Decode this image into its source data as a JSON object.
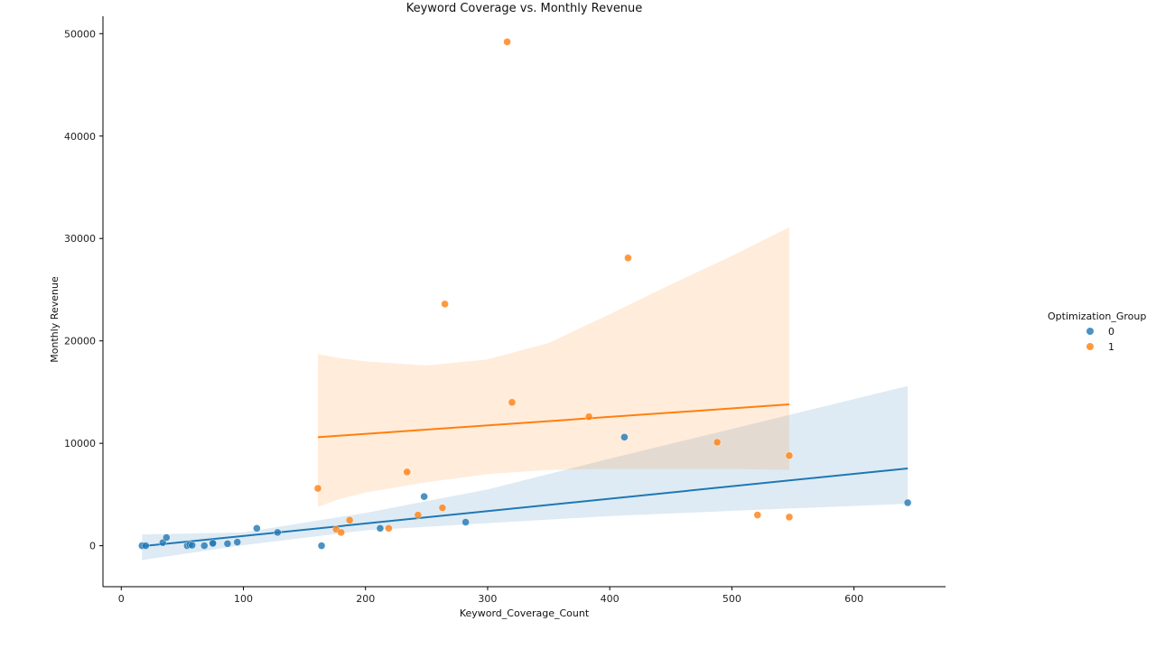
{
  "chart_data": {
    "type": "scatter",
    "title": "Keyword Coverage vs. Monthly Revenue",
    "xlabel": "Keyword_Coverage_Count",
    "ylabel": "Monthly Revenue",
    "xlim": [
      -15,
      675
    ],
    "ylim": [
      -4000,
      51700
    ],
    "x_ticks": [
      0,
      100,
      200,
      300,
      400,
      500,
      600
    ],
    "y_ticks": [
      0,
      10000,
      20000,
      30000,
      40000,
      50000
    ],
    "grid": false,
    "legend": {
      "title": "Optimization_Group",
      "placement": "right",
      "entries": [
        "0",
        "1"
      ]
    },
    "series": [
      {
        "name": "0",
        "color": "#1f77b4",
        "points": [
          [
            17,
            0
          ],
          [
            20,
            0
          ],
          [
            34,
            300
          ],
          [
            37,
            800
          ],
          [
            54,
            0
          ],
          [
            56,
            100
          ],
          [
            58,
            50
          ],
          [
            68,
            0
          ],
          [
            75,
            200
          ],
          [
            75,
            250
          ],
          [
            87,
            200
          ],
          [
            95,
            350
          ],
          [
            111,
            1700
          ],
          [
            128,
            1300
          ],
          [
            164,
            0
          ],
          [
            212,
            1700
          ],
          [
            248,
            4800
          ],
          [
            282,
            2300
          ],
          [
            412,
            10600
          ],
          [
            644,
            4200
          ]
        ],
        "fit_line": {
          "x": [
            17,
            644
          ],
          "y": [
            -50,
            7550
          ]
        },
        "ci_band": {
          "x": [
            17,
            100,
            200,
            300,
            400,
            500,
            644
          ],
          "lower": [
            -1400,
            50,
            1500,
            2200,
            2900,
            3400,
            4100
          ],
          "upper": [
            1100,
            1300,
            3200,
            5500,
            8500,
            11400,
            15600
          ]
        }
      },
      {
        "name": "1",
        "color": "#ff7f0e",
        "points": [
          [
            161,
            5600
          ],
          [
            176,
            1600
          ],
          [
            180,
            1300
          ],
          [
            187,
            2500
          ],
          [
            219,
            1700
          ],
          [
            234,
            7200
          ],
          [
            243,
            3000
          ],
          [
            263,
            3700
          ],
          [
            265,
            23600
          ],
          [
            316,
            49200
          ],
          [
            320,
            14000
          ],
          [
            383,
            12600
          ],
          [
            415,
            28100
          ],
          [
            488,
            10100
          ],
          [
            521,
            3000
          ],
          [
            547,
            2800
          ],
          [
            547,
            8800
          ]
        ],
        "fit_line": {
          "x": [
            161,
            547
          ],
          "y": [
            10600,
            13800
          ]
        },
        "ci_band": {
          "x": [
            161,
            180,
            200,
            250,
            300,
            350,
            400,
            450,
            500,
            547
          ],
          "lower": [
            3800,
            4600,
            5200,
            6200,
            7000,
            7400,
            7500,
            7500,
            7500,
            7400
          ],
          "upper": [
            18700,
            18300,
            18000,
            17600,
            18200,
            19800,
            22600,
            25500,
            28300,
            31100
          ]
        }
      }
    ]
  }
}
